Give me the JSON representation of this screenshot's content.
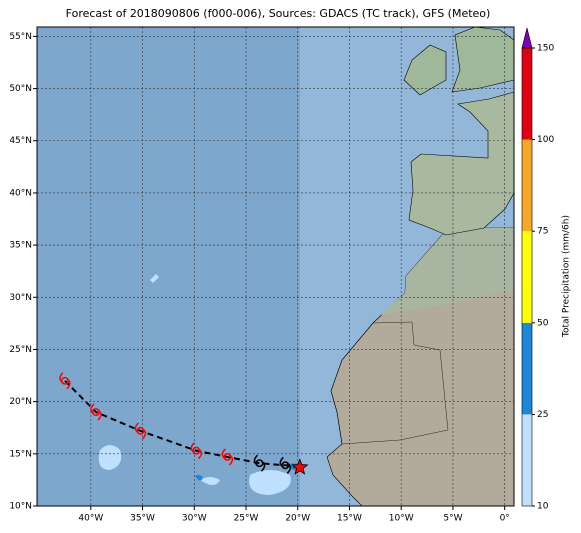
{
  "chart_data": {
    "type": "map",
    "title": "Forecast of 2018090806 (f000-006), Sources: GDACS (TC track), GFS (Meteo)",
    "xlim": [
      -45.2,
      0.9
    ],
    "ylim": [
      10,
      55.9
    ],
    "xticks": [
      {
        "value": -40,
        "label": "40°W"
      },
      {
        "value": -35,
        "label": "35°W"
      },
      {
        "value": -30,
        "label": "30°W"
      },
      {
        "value": -25,
        "label": "25°W"
      },
      {
        "value": -20,
        "label": "20°W"
      },
      {
        "value": -15,
        "label": "15°W"
      },
      {
        "value": -10,
        "label": "10°W"
      },
      {
        "value": -5,
        "label": "5°W"
      },
      {
        "value": 0,
        "label": "0°"
      }
    ],
    "yticks": [
      {
        "value": 10,
        "label": "10°N"
      },
      {
        "value": 15,
        "label": "15°N"
      },
      {
        "value": 20,
        "label": "20°N"
      },
      {
        "value": 25,
        "label": "25°N"
      },
      {
        "value": 30,
        "label": "30°N"
      },
      {
        "value": 35,
        "label": "35°N"
      },
      {
        "value": 40,
        "label": "40°N"
      },
      {
        "value": 45,
        "label": "45°N"
      },
      {
        "value": 50,
        "label": "50°N"
      },
      {
        "value": 55,
        "label": "55°N"
      }
    ],
    "grid": true,
    "track": {
      "lon": [
        -42.5,
        -39.5,
        -35.2,
        -29.8,
        -26.8,
        -23.7,
        -21.2,
        -19.8
      ],
      "lat": [
        22.0,
        19.0,
        17.2,
        15.3,
        14.7,
        14.1,
        13.9,
        13.7
      ],
      "marker_colors": [
        "#ff0000",
        "#ff0000",
        "#ff0000",
        "#ff0000",
        "#ff0000",
        "#000000",
        "#000000",
        "#ff0000"
      ],
      "line_color": "#000000"
    },
    "colorbar": {
      "label": "Total Precipitation (mm/6h)",
      "levels": [
        10,
        25,
        50,
        75,
        100,
        150
      ],
      "colors": [
        "#c0e0ff",
        "#1e88d8",
        "#ffff00",
        "#f8a828",
        "#e00010"
      ],
      "extend_color": "#8000c0"
    }
  }
}
